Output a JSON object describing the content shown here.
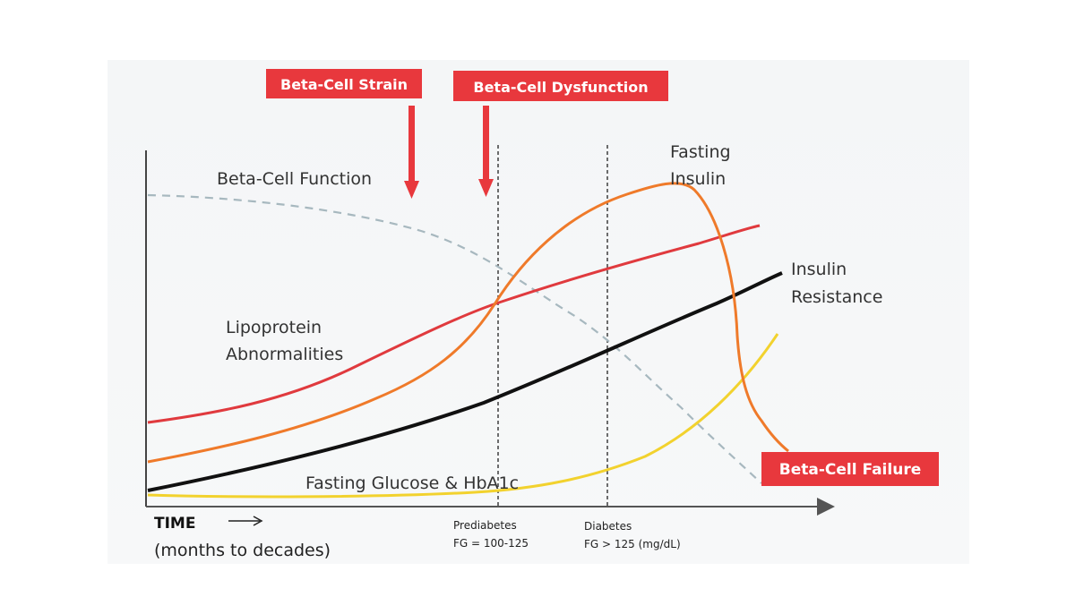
{
  "diagram": {
    "callouts": {
      "strain": "Beta-Cell Strain",
      "dysfunction": "Beta-Cell Dysfunction",
      "failure": "Beta-Cell Failure"
    },
    "curve_labels": {
      "beta_function": "Beta-Cell Function",
      "fasting_insulin_1": "Fasting",
      "fasting_insulin_2": "Insulin",
      "insulin_resistance_1": "Insulin",
      "insulin_resistance_2": "Resistance",
      "lipoprotein_1": "Lipoprotein",
      "lipoprotein_2": "Abnormalities",
      "glucose": "Fasting Glucose & HbA1c"
    },
    "axis": {
      "time": "TIME",
      "time_sub": "(months to decades)"
    },
    "thresholds": {
      "prediabetes_1": "Prediabetes",
      "prediabetes_2": "FG = 100-125",
      "diabetes_1": "Diabetes",
      "diabetes_2": "FG > 125  (mg/dL)"
    },
    "colors": {
      "callout": "#e8383d",
      "red_curve": "#e03a3e",
      "orange_curve": "#ef7a2a",
      "black_curve": "#111111",
      "yellow_curve": "#f2d22e",
      "dashed_curve": "#9fb3bb"
    }
  }
}
